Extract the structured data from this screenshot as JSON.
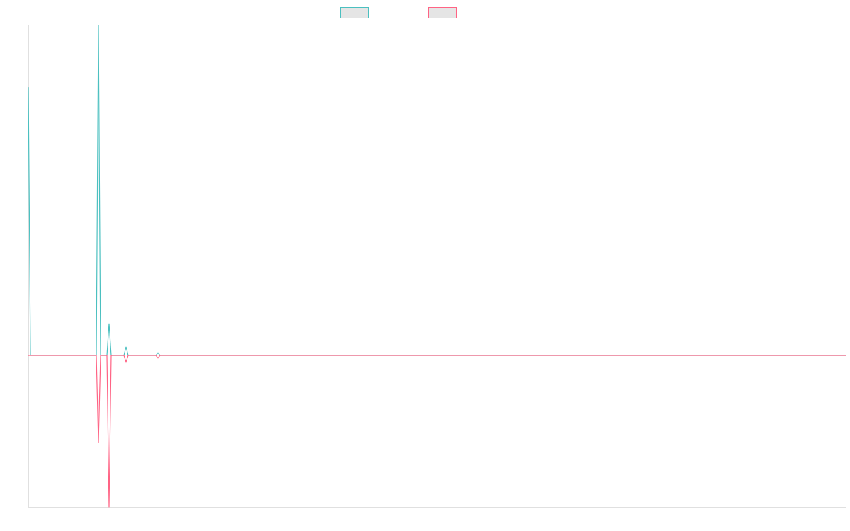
{
  "chart_data": {
    "type": "line",
    "title": "",
    "xlabel": "",
    "ylabel": "",
    "grid": false,
    "legend": {
      "placement": "top",
      "entries": [
        "",
        ""
      ]
    },
    "length": 386,
    "ylim": [
      -0.46,
      1.0
    ],
    "series": [
      {
        "color": "#4bc0c0",
        "points": [
          [
            0,
            0.813
          ],
          [
            33,
            1.0
          ],
          [
            38,
            0.097
          ],
          [
            46,
            0.026
          ],
          [
            61,
            0.008
          ]
        ]
      },
      {
        "color": "#ff6384",
        "points": [
          [
            33,
            -0.266
          ],
          [
            38,
            -0.46
          ],
          [
            46,
            -0.02
          ],
          [
            61,
            -0.008
          ]
        ]
      }
    ]
  }
}
